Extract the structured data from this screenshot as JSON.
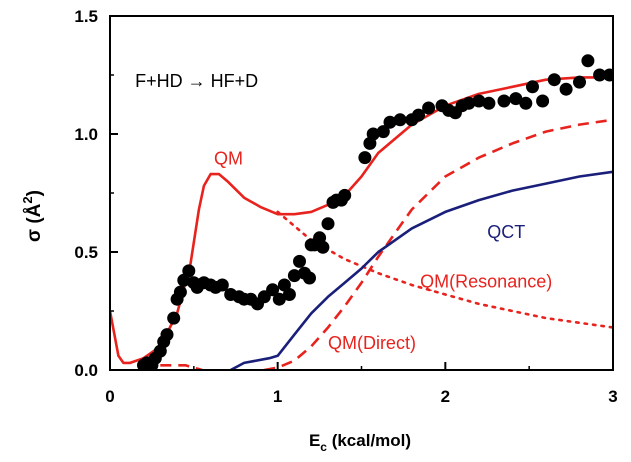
{
  "chart_data": {
    "type": "line",
    "title": "",
    "xlabel": "E",
    "xlabel_sub": "c",
    "xlabel_units": " (kcal/mol)",
    "ylabel": "σ (Å",
    "ylabel_sup": "2",
    "ylabel_close": ")",
    "xlim": [
      0,
      3
    ],
    "ylim": [
      0,
      1.5
    ],
    "xticks": [
      {
        "value": 0,
        "label": "0"
      },
      {
        "value": 1,
        "label": "1"
      },
      {
        "value": 2,
        "label": "2"
      },
      {
        "value": 3,
        "label": "3"
      }
    ],
    "yticks": [
      {
        "value": 0,
        "label": "0.0"
      },
      {
        "value": 0.5,
        "label": "0.5"
      },
      {
        "value": 1.0,
        "label": "1.0"
      },
      {
        "value": 1.5,
        "label": "1.5"
      }
    ],
    "grid": false,
    "colors": {
      "red": "#e8231e",
      "blue": "#1a1f7a",
      "black": "#000000"
    },
    "annotations": [
      {
        "text": "F+HD → HF+D",
        "color": "#000000",
        "x": 0.15,
        "y": 1.2
      },
      {
        "text": "QM",
        "color": "#e8231e",
        "x": 0.62,
        "y": 0.87
      },
      {
        "text": "QCT",
        "color": "#1a1f7a",
        "x": 2.25,
        "y": 0.56
      },
      {
        "text": "QM(Resonance)",
        "color": "#e8231e",
        "x": 1.85,
        "y": 0.35
      },
      {
        "text": "QM(Direct)",
        "color": "#e8231e",
        "x": 1.3,
        "y": 0.09
      }
    ],
    "series": [
      {
        "style": "solid",
        "color": "#e8231e",
        "x": [
          0,
          0.05,
          0.08,
          0.12,
          0.2,
          0.3,
          0.4,
          0.48,
          0.53,
          0.56,
          0.6,
          0.65,
          0.7,
          0.8,
          0.9,
          1.0,
          1.1,
          1.2,
          1.3,
          1.4,
          1.5,
          1.6,
          1.8,
          2.0,
          2.2,
          2.4,
          2.6,
          2.8,
          3.0
        ],
        "y": [
          0.25,
          0.06,
          0.03,
          0.03,
          0.05,
          0.1,
          0.24,
          0.45,
          0.68,
          0.78,
          0.83,
          0.83,
          0.8,
          0.73,
          0.69,
          0.66,
          0.66,
          0.67,
          0.7,
          0.74,
          0.82,
          0.92,
          1.04,
          1.12,
          1.17,
          1.2,
          1.23,
          1.24,
          1.24
        ]
      },
      {
        "style": "dotted",
        "color": "#e8231e",
        "x": [
          1.0,
          1.2,
          1.4,
          1.6,
          1.8,
          2.0,
          2.2,
          2.4,
          2.6,
          2.8,
          3.0
        ],
        "y": [
          0.67,
          0.55,
          0.47,
          0.41,
          0.36,
          0.32,
          0.28,
          0.25,
          0.22,
          0.2,
          0.18
        ]
      },
      {
        "style": "dashed",
        "color": "#e8231e",
        "x": [
          0.92,
          1.0,
          1.1,
          1.2,
          1.3,
          1.4,
          1.5,
          1.6,
          1.7,
          1.8,
          2.0,
          2.2,
          2.4,
          2.6,
          2.8,
          3.0
        ],
        "y": [
          0.0,
          0.01,
          0.04,
          0.1,
          0.18,
          0.27,
          0.37,
          0.48,
          0.58,
          0.68,
          0.82,
          0.9,
          0.96,
          1.01,
          1.04,
          1.06
        ]
      },
      {
        "style": "solid",
        "color": "#1a1f7a",
        "x": [
          0.72,
          0.8,
          0.95,
          1.0,
          1.1,
          1.2,
          1.3,
          1.4,
          1.5,
          1.6,
          1.8,
          2.0,
          2.2,
          2.4,
          2.6,
          2.8,
          3.0
        ],
        "y": [
          0.0,
          0.03,
          0.05,
          0.06,
          0.15,
          0.24,
          0.31,
          0.37,
          0.43,
          0.5,
          0.6,
          0.67,
          0.72,
          0.76,
          0.79,
          0.82,
          0.84
        ]
      },
      {
        "style": "dashed",
        "color": "#e8231e",
        "x": [
          0.3,
          0.45,
          0.5,
          0.55
        ],
        "y": [
          0.02,
          0.02,
          0.01,
          0.0
        ]
      }
    ],
    "points": {
      "color": "#000000",
      "x": [
        0.2,
        0.22,
        0.25,
        0.27,
        0.3,
        0.32,
        0.34,
        0.38,
        0.4,
        0.42,
        0.44,
        0.47,
        0.5,
        0.52,
        0.56,
        0.6,
        0.63,
        0.67,
        0.72,
        0.77,
        0.8,
        0.84,
        0.88,
        0.92,
        0.97,
        1.01,
        1.04,
        1.07,
        1.1,
        1.13,
        1.16,
        1.19,
        1.2,
        1.22,
        1.25,
        1.27,
        1.3,
        1.33,
        1.35,
        1.38,
        1.4,
        1.52,
        1.55,
        1.57,
        1.63,
        1.67,
        1.73,
        1.8,
        1.84,
        1.9,
        1.98,
        2.02,
        2.06,
        2.1,
        2.14,
        2.2,
        2.26,
        2.35,
        2.42,
        2.48,
        2.52,
        2.58,
        2.65,
        2.72,
        2.8,
        2.85,
        2.92,
        2.98
      ],
      "y": [
        0.02,
        0.03,
        0.02,
        0.05,
        0.08,
        0.12,
        0.15,
        0.22,
        0.3,
        0.33,
        0.38,
        0.42,
        0.37,
        0.35,
        0.37,
        0.36,
        0.35,
        0.36,
        0.32,
        0.31,
        0.3,
        0.3,
        0.28,
        0.31,
        0.34,
        0.3,
        0.36,
        0.32,
        0.4,
        0.46,
        0.41,
        0.39,
        0.53,
        0.53,
        0.56,
        0.52,
        0.62,
        0.71,
        0.72,
        0.72,
        0.74,
        0.9,
        0.96,
        1.0,
        1.01,
        1.05,
        1.06,
        1.06,
        1.08,
        1.11,
        1.12,
        1.1,
        1.09,
        1.12,
        1.13,
        1.14,
        1.13,
        1.14,
        1.15,
        1.13,
        1.2,
        1.14,
        1.23,
        1.19,
        1.22,
        1.31,
        1.25,
        1.25
      ]
    }
  }
}
